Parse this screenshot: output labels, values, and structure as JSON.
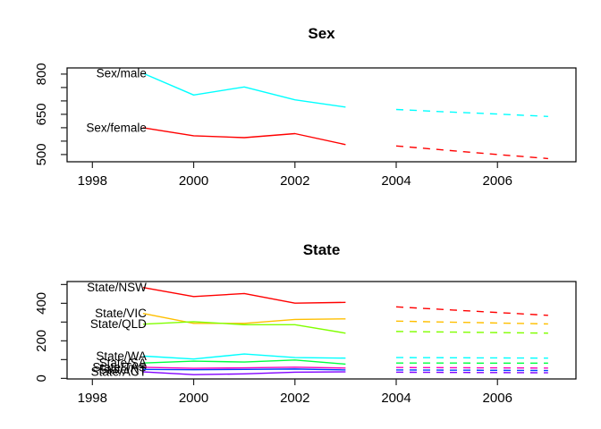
{
  "figure": {
    "background": "#ffffff",
    "text_color": "#000000"
  },
  "chart_data": [
    {
      "type": "line",
      "title": "Sex",
      "xlabel": "",
      "ylabel": "",
      "x_history": [
        1999,
        2000,
        2001,
        2002,
        2003
      ],
      "x_forecast": [
        2004,
        2005,
        2006,
        2007
      ],
      "xlim": [
        1997.5,
        2007.55
      ],
      "ylim": [
        473,
        823
      ],
      "xticks": [
        {
          "v": 1998,
          "label": "1998"
        },
        {
          "v": 2000,
          "label": "2000"
        },
        {
          "v": 2002,
          "label": "2002"
        },
        {
          "v": 2004,
          "label": "2004"
        },
        {
          "v": 2006,
          "label": "2006"
        }
      ],
      "yticks": [
        {
          "v": 500,
          "label": "500"
        },
        {
          "v": 550,
          "label": ""
        },
        {
          "v": 600,
          "label": ""
        },
        {
          "v": 650,
          "label": "650"
        },
        {
          "v": 700,
          "label": ""
        },
        {
          "v": 750,
          "label": ""
        },
        {
          "v": 800,
          "label": "800"
        }
      ],
      "grid": false,
      "legend": "inline-labels",
      "series": [
        {
          "name": "Sex/male",
          "color": "#00FFFF",
          "history": [
            803,
            722,
            752,
            704,
            677
          ],
          "forecast": [
            668,
            659,
            651,
            642
          ],
          "forecast_style": "dashed"
        },
        {
          "name": "Sex/female",
          "color": "#FF0000",
          "history": [
            600,
            570,
            563,
            578,
            537
          ],
          "forecast": [
            532,
            516,
            500,
            485
          ],
          "forecast_style": "dashed"
        }
      ]
    },
    {
      "type": "line",
      "title": "State",
      "xlabel": "",
      "ylabel": "",
      "x_history": [
        1999,
        2000,
        2001,
        2002,
        2003
      ],
      "x_forecast": [
        2004,
        2005,
        2006,
        2007
      ],
      "xlim": [
        1997.5,
        2007.55
      ],
      "ylim": [
        -3,
        516
      ],
      "xticks": [
        {
          "v": 1998,
          "label": "1998"
        },
        {
          "v": 2000,
          "label": "2000"
        },
        {
          "v": 2002,
          "label": "2002"
        },
        {
          "v": 2004,
          "label": "2004"
        },
        {
          "v": 2006,
          "label": "2006"
        }
      ],
      "yticks": [
        {
          "v": 0,
          "label": "0"
        },
        {
          "v": 100,
          "label": ""
        },
        {
          "v": 200,
          "label": "200"
        },
        {
          "v": 300,
          "label": ""
        },
        {
          "v": 400,
          "label": "400"
        },
        {
          "v": 500,
          "label": ""
        }
      ],
      "grid": false,
      "legend": "inline-labels",
      "series": [
        {
          "name": "State/NSW",
          "color": "#FF0000",
          "history": [
            484,
            436,
            452,
            401,
            405
          ],
          "forecast": [
            381,
            366,
            351,
            336
          ],
          "forecast_style": "dashed"
        },
        {
          "name": "State/VIC",
          "color": "#FFBF00",
          "history": [
            346,
            293,
            293,
            314,
            317
          ],
          "forecast": [
            305,
            300,
            295,
            290
          ],
          "forecast_style": "dashed"
        },
        {
          "name": "State/QLD",
          "color": "#80FF00",
          "history": [
            289,
            302,
            286,
            286,
            241
          ],
          "forecast": [
            250,
            247,
            244,
            241
          ],
          "forecast_style": "dashed"
        },
        {
          "name": "State/WA",
          "color": "#00FFFF",
          "history": [
            119,
            103,
            130,
            111,
            108
          ],
          "forecast": [
            111,
            110,
            109,
            108
          ],
          "forecast_style": "dashed"
        },
        {
          "name": "State/SA",
          "color": "#00FF40",
          "history": [
            82,
            92,
            87,
            98,
            76
          ],
          "forecast": [
            82,
            82,
            81,
            81
          ],
          "forecast_style": "dashed"
        },
        {
          "name": "State/TAS",
          "color": "#FF00BF",
          "history": [
            59,
            54,
            56,
            60,
            55
          ],
          "forecast": [
            58,
            57,
            56,
            55
          ],
          "forecast_style": "dashed"
        },
        {
          "name": "State/NT",
          "color": "#0040FF",
          "history": [
            48,
            46,
            48,
            50,
            45
          ],
          "forecast": [
            45,
            44,
            43,
            42
          ],
          "forecast_style": "dashed"
        },
        {
          "name": "State/ACT",
          "color": "#8000FF",
          "history": [
            35,
            20,
            24,
            33,
            35
          ],
          "forecast": [
            33,
            32,
            31,
            30
          ],
          "forecast_style": "dashed"
        }
      ]
    }
  ]
}
